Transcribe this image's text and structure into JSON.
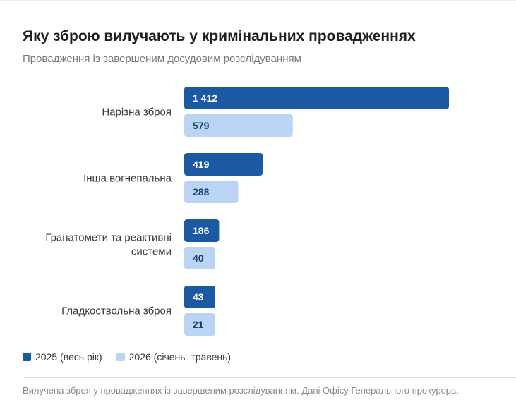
{
  "title": "Яку зброю вилучають у кримінальних провадженнях",
  "subtitle": "Провадження із завершеним досудовим розслідуванням",
  "footer": "Вилучена зброя у провадженнях із завершеним розслідуванням. Дані Офісу Генерального прокурора.",
  "colors": {
    "series_2025": "#1b5aa3",
    "series_2026": "#b9d5f3",
    "label_2025": "#ffffff",
    "label_2026": "#1b3f73"
  },
  "chart_data": {
    "type": "bar",
    "orientation": "horizontal",
    "categories": [
      [
        "Нарізна зброя"
      ],
      [
        "Інша вогнепальна"
      ],
      [
        "Гранатомети та реактивні",
        "системи"
      ],
      [
        "Гладкоствольна зброя"
      ]
    ],
    "series": [
      {
        "name": "2025 (весь рік)",
        "values": [
          1412,
          419,
          186,
          43
        ],
        "labels": [
          "1 412",
          "419",
          "186",
          "43"
        ]
      },
      {
        "name": "2026 (січень–травень)",
        "values": [
          579,
          288,
          40,
          21
        ],
        "labels": [
          "579",
          "288",
          "40",
          "21"
        ]
      }
    ],
    "xlim": [
      0,
      1412
    ],
    "grid": false,
    "legend": "bottom-left"
  }
}
